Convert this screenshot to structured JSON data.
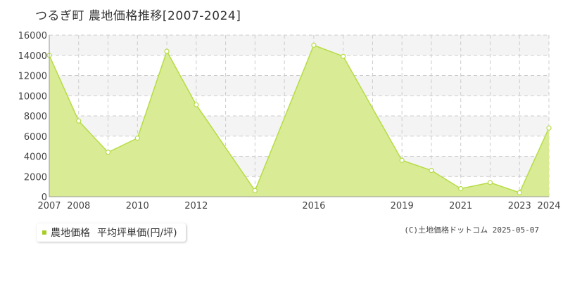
{
  "title": "つるぎ町 農地価格推移[2007-2024]",
  "legend": {
    "series_name": "農地価格",
    "unit_label": "平均坪単価(円/坪)",
    "color": "#a7cc28"
  },
  "credit": "(C)土地価格ドットコム 2025-05-07",
  "colors": {
    "fill": "#d9ec95",
    "line": "#b6dc45",
    "marker_stroke": "#b6dc45",
    "grid": "#cccccc",
    "band": "#f4f4f4"
  },
  "chart_data": {
    "type": "area",
    "x": [
      2007,
      2008,
      2009,
      2010,
      2011,
      2012,
      2014,
      2016,
      2017,
      2019,
      2020,
      2021,
      2022,
      2023,
      2024
    ],
    "values": [
      14000,
      7500,
      4400,
      5800,
      14400,
      9100,
      600,
      15000,
      13900,
      3600,
      2600,
      800,
      1400,
      400,
      6800
    ],
    "xticks": [
      2007,
      2008,
      2010,
      2012,
      2016,
      2019,
      2021,
      2023,
      2024
    ],
    "yticks": [
      0,
      2000,
      4000,
      6000,
      8000,
      10000,
      12000,
      14000,
      16000
    ],
    "xlim": [
      2007,
      2024
    ],
    "ylim": [
      0,
      16000
    ],
    "grid": true
  }
}
